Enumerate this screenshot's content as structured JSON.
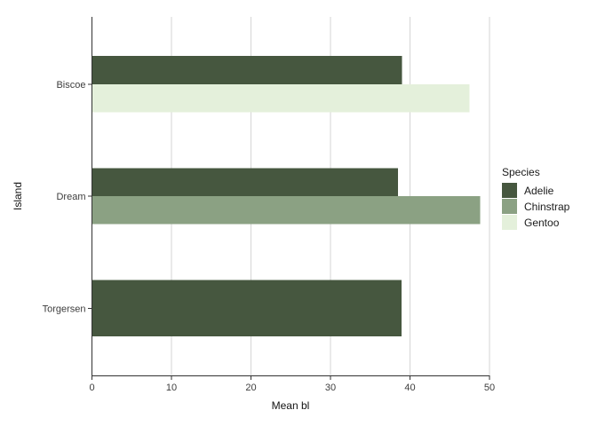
{
  "chart_data": {
    "type": "bar",
    "orientation": "horizontal",
    "title": "",
    "xlabel": "Mean bl",
    "ylabel": "Island",
    "categories": [
      "Biscoe",
      "Dream",
      "Torgersen"
    ],
    "series": [
      {
        "name": "Adelie",
        "color": "#46573f",
        "values": [
          38.98,
          38.5,
          38.95
        ]
      },
      {
        "name": "Chinstrap",
        "color": "#8ba183",
        "values": [
          null,
          48.83,
          null
        ]
      },
      {
        "name": "Gentoo",
        "color": "#e4f0db",
        "values": [
          47.5,
          null,
          null
        ]
      }
    ],
    "x_ticks": [
      0,
      10,
      20,
      30,
      40,
      50
    ],
    "xlim": [
      0,
      50
    ],
    "grid": {
      "vertical_major": true,
      "horizontal": false
    },
    "legend": {
      "title": "Species",
      "entries": [
        "Adelie",
        "Chinstrap",
        "Gentoo"
      ],
      "position": "right"
    },
    "colors": {
      "background": "#ffffff",
      "gridline": "#d5d5d5",
      "axis_line": "#333333",
      "tick_mark": "#333333",
      "tick_label": "#3d3d3d",
      "title_text": "#111111"
    }
  }
}
